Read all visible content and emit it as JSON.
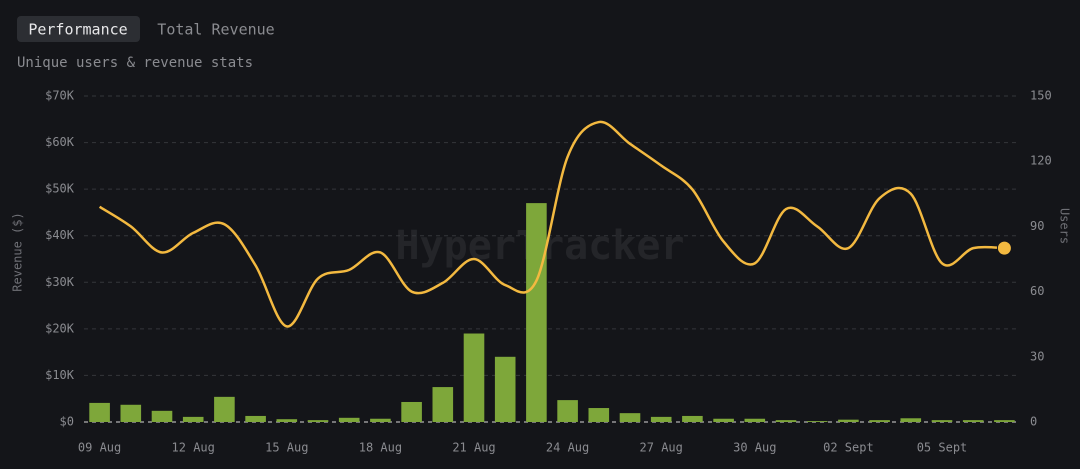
{
  "tabs": [
    "Performance",
    "Total Revenue"
  ],
  "chart_data": {
    "type": "bar_line",
    "subtitle": "Unique users & revenue stats",
    "watermark": "HyperTracker",
    "y_label": "Revenue ($)",
    "y2_label": "Users",
    "categories": [
      "09 Aug",
      null,
      null,
      "12 Aug",
      null,
      null,
      "15 Aug",
      null,
      null,
      "18 Aug",
      null,
      null,
      "21 Aug",
      null,
      null,
      "24 Aug",
      null,
      null,
      "27 Aug",
      null,
      null,
      "30 Aug",
      null,
      null,
      "02 Sept",
      null,
      null,
      "05 Sept",
      null,
      null
    ],
    "series": [
      {
        "name": "Revenue",
        "type": "bar",
        "color": "#7ea73a",
        "values": [
          4100,
          3700,
          2400,
          1100,
          5400,
          1300,
          600,
          400,
          900,
          700,
          4300,
          7500,
          19000,
          14000,
          47000,
          4700,
          3000,
          1900,
          1100,
          1300,
          700,
          700,
          400,
          200,
          500,
          400,
          800,
          400,
          400,
          400
        ]
      },
      {
        "name": "Users",
        "type": "line",
        "axis": "y2",
        "color": "#f3b940",
        "values": [
          99,
          90,
          78,
          87,
          91,
          72,
          44,
          66,
          70,
          78,
          60,
          64,
          75,
          63,
          65,
          122,
          138,
          128,
          118,
          107,
          83,
          73,
          98,
          90,
          80,
          103,
          105,
          73,
          80,
          80
        ]
      }
    ],
    "ylim": [
      0,
      70000
    ],
    "yticks": [
      {
        "value": 0,
        "label": "$0"
      },
      {
        "value": 10000,
        "label": "$10K"
      },
      {
        "value": 20000,
        "label": "$20K"
      },
      {
        "value": 30000,
        "label": "$30K"
      },
      {
        "value": 40000,
        "label": "$40K"
      },
      {
        "value": 50000,
        "label": "$50K"
      },
      {
        "value": 60000,
        "label": "$60K"
      },
      {
        "value": 70000,
        "label": "$70K"
      }
    ],
    "y2lim": [
      0,
      150
    ],
    "y2ticks": [
      0,
      30,
      60,
      90,
      120,
      150
    ],
    "grid": true
  }
}
